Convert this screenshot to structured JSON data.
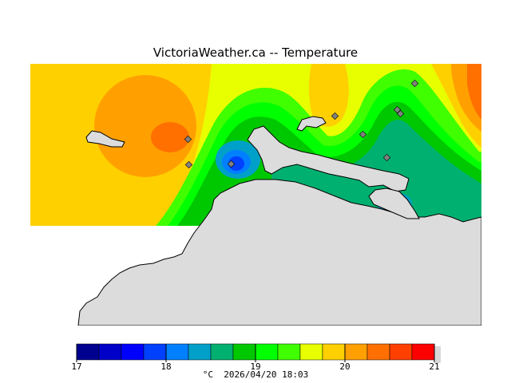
{
  "title": "VictoriaWeather.ca -- Temperature",
  "legend": {
    "min": 17,
    "max": 21,
    "tick_labels": [
      "17",
      "18",
      "19",
      "20",
      "21"
    ],
    "unit": "°C",
    "timestamp": "2026/04/20 18:03",
    "colors": [
      "#000090",
      "#0000c8",
      "#0000ff",
      "#0040ff",
      "#0080ff",
      "#00a0c8",
      "#00b070",
      "#00c800",
      "#00ff00",
      "#40ff00",
      "#e8ff00",
      "#ffd000",
      "#ffa000",
      "#ff7000",
      "#ff4000",
      "#ff0000"
    ]
  },
  "colors": {
    "land": "#dcdcdc",
    "coast": "#000000",
    "station_marker": "#808080"
  }
}
